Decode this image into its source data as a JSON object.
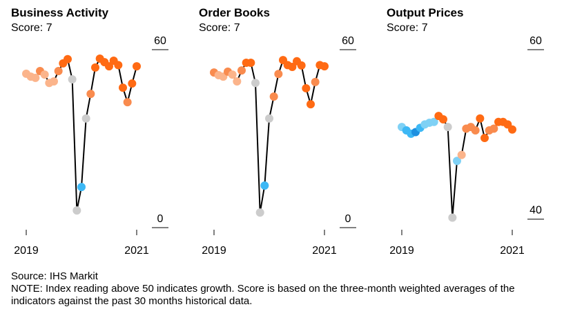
{
  "chart_data": [
    {
      "type": "line",
      "title": "Business Activity",
      "subtitle": "Score: 7",
      "x": [
        2019,
        2019.0833,
        2019.1667,
        2019.25,
        2019.3333,
        2019.4167,
        2019.5,
        2019.5833,
        2019.6667,
        2019.75,
        2019.8333,
        2019.9167,
        2020,
        2020.0833,
        2020.1667,
        2020.25,
        2020.3333,
        2020.4167,
        2020.5,
        2020.5833,
        2020.6667,
        2020.75,
        2020.8333,
        2020.9167,
        2021
      ],
      "series": [
        {
          "color": "#000000",
          "values": [
            49.1,
            48.1,
            47.7,
            50,
            48.8,
            46,
            46.5,
            50,
            52.6,
            54,
            47.2,
            3,
            10.9,
            34,
            42.3,
            51.2,
            54.2,
            53,
            51.6,
            53.5,
            52,
            44.4,
            39.5,
            45.8,
            51.6
          ],
          "point_colors": [
            "#fbb48b",
            "#fbb48b",
            "#fbb48b",
            "#f98b4e",
            "#fbb48b",
            "#fbb48b",
            "#fbb48b",
            "#f98b4e",
            "#ff6a13",
            "#ff6a13",
            "#cccccc",
            "#cccccc",
            "#3db8f5",
            "#cccccc",
            "#f98b4e",
            "#ff6a13",
            "#ff6a13",
            "#ff6a13",
            "#ff6a13",
            "#ff6a13",
            "#ff6a13",
            "#ff6a13",
            "#f98b4e",
            "#ff6a13",
            "#ff6a13"
          ]
        }
      ],
      "xlim": [
        2018.9,
        2021.3
      ],
      "xticks": [
        2019,
        2021
      ],
      "ylim": [
        0,
        60
      ],
      "yticks": [
        0,
        60
      ]
    },
    {
      "type": "line",
      "title": "Order Books",
      "subtitle": "Score: 7",
      "x": [
        2019,
        2019.0833,
        2019.1667,
        2019.25,
        2019.3333,
        2019.4167,
        2019.5,
        2019.5833,
        2019.6667,
        2019.75,
        2019.8333,
        2019.9167,
        2020,
        2020.0833,
        2020.1667,
        2020.25,
        2020.3333,
        2020.4167,
        2020.5,
        2020.5833,
        2020.6667,
        2020.75,
        2020.8333,
        2020.9167,
        2021
      ],
      "series": [
        {
          "color": "#000000",
          "values": [
            49.5,
            48.6,
            48.1,
            49.8,
            48.8,
            46.5,
            50.2,
            52.8,
            52.8,
            46,
            2.3,
            11.4,
            34,
            41.4,
            49,
            53.7,
            52,
            51.4,
            53.3,
            51.9,
            44.2,
            38.8,
            46.3,
            52,
            51.6
          ],
          "point_colors": [
            "#f98b4e",
            "#fbb48b",
            "#fbb48b",
            "#f98b4e",
            "#fbb48b",
            "#fbb48b",
            "#f98b4e",
            "#ff6a13",
            "#ff6a13",
            "#cccccc",
            "#cccccc",
            "#3db8f5",
            "#cccccc",
            "#f98b4e",
            "#f98b4e",
            "#ff6a13",
            "#ff6a13",
            "#ff6a13",
            "#ff6a13",
            "#ff6a13",
            "#ff6a13",
            "#ff6a13",
            "#f98b4e",
            "#ff6a13",
            "#ff6a13"
          ]
        }
      ],
      "xlim": [
        2018.9,
        2021.3
      ],
      "xticks": [
        2019,
        2021
      ],
      "ylim": [
        0,
        60
      ],
      "yticks": [
        0,
        60
      ]
    },
    {
      "type": "line",
      "title": "Output Prices",
      "subtitle": "Score: 7",
      "x": [
        2019,
        2019.0833,
        2019.1667,
        2019.25,
        2019.3333,
        2019.4167,
        2019.5,
        2019.5833,
        2019.6667,
        2019.75,
        2019.8333,
        2019.9167,
        2020,
        2020.0833,
        2020.1667,
        2020.25,
        2020.3333,
        2020.4167,
        2020.5,
        2020.5833,
        2020.6667,
        2020.75,
        2020.8333,
        2020.9167,
        2021
      ],
      "series": [
        {
          "color": "#000000",
          "values": [
            49.9,
            49.5,
            49.1,
            49.3,
            49.8,
            50.2,
            50.4,
            50.5,
            51.2,
            50.8,
            49.9,
            39.2,
            45.9,
            46.6,
            49.7,
            49.9,
            49.5,
            50.9,
            48.6,
            49.5,
            49.7,
            50.5,
            50.5,
            50.2,
            49.6
          ],
          "point_colors": [
            "#7fd1f5",
            "#3db8f5",
            "#3db8f5",
            "#1e90e0",
            "#3db8f5",
            "#7fd1f5",
            "#7fd1f5",
            "#7fd1f5",
            "#ff6a13",
            "#ff6a13",
            "#cccccc",
            "#cccccc",
            "#7fd1f5",
            "#fbb48b",
            "#f98b4e",
            "#f98b4e",
            "#f98b4e",
            "#ff6a13",
            "#ff6a13",
            "#f98b4e",
            "#f98b4e",
            "#ff6a13",
            "#ff6a13",
            "#ff6a13",
            "#ff6a13"
          ]
        }
      ],
      "xlim": [
        2018.9,
        2021.3
      ],
      "xticks": [
        2019,
        2021
      ],
      "ylim": [
        39,
        60
      ],
      "yticks": [
        40,
        60
      ]
    }
  ],
  "source": "Source: IHS Markit",
  "note": "NOTE: Index reading above 50 indicates growth. Score is based on the three-month weighted averages of the indicators against the past 30 months historical data."
}
